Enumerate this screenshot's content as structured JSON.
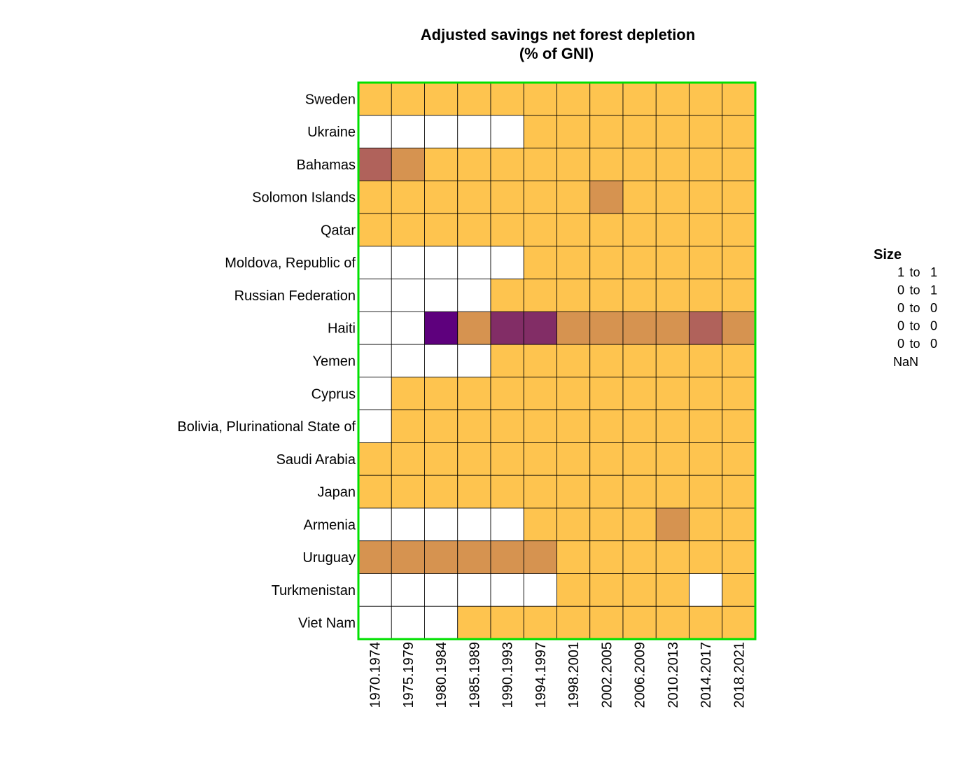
{
  "chart_data": {
    "type": "heatmap",
    "title": "Adjusted savings net forest depletion",
    "subtitle": "(% of GNI)",
    "rows": [
      "Sweden",
      "Ukraine",
      "Bahamas",
      "Solomon Islands",
      "Qatar",
      "Moldova, Republic of",
      "Russian Federation",
      "Haiti",
      "Yemen",
      "Cyprus",
      "Bolivia, Plurinational State of",
      "Saudi Arabia",
      "Japan",
      "Armenia",
      "Uruguay",
      "Turkmenistan",
      "Viet Nam"
    ],
    "columns": [
      "1970.1974",
      "1975.1979",
      "1980.1984",
      "1985.1989",
      "1990.1993",
      "1994.1997",
      "1998.2001",
      "2002.2005",
      "2006.2009",
      "2010.2013",
      "2014.2017",
      "2018.2021"
    ],
    "level_colors": [
      "#5e007d",
      "#822d66",
      "#b0625b",
      "#d69350",
      "#fec44f"
    ],
    "nan_color": "#ffffff",
    "grid_border_color": "#00e000",
    "cell_levels": [
      [
        4,
        4,
        4,
        4,
        4,
        4,
        4,
        4,
        4,
        4,
        4,
        4
      ],
      [
        null,
        null,
        null,
        null,
        null,
        4,
        4,
        4,
        4,
        4,
        4,
        4
      ],
      [
        2,
        3,
        4,
        4,
        4,
        4,
        4,
        4,
        4,
        4,
        4,
        4
      ],
      [
        4,
        4,
        4,
        4,
        4,
        4,
        4,
        3,
        4,
        4,
        4,
        4
      ],
      [
        4,
        4,
        4,
        4,
        4,
        4,
        4,
        4,
        4,
        4,
        4,
        4
      ],
      [
        null,
        null,
        null,
        null,
        null,
        4,
        4,
        4,
        4,
        4,
        4,
        4
      ],
      [
        null,
        null,
        null,
        null,
        4,
        4,
        4,
        4,
        4,
        4,
        4,
        4
      ],
      [
        null,
        null,
        0,
        3,
        1,
        1,
        3,
        3,
        3,
        3,
        2,
        3
      ],
      [
        null,
        null,
        null,
        null,
        4,
        4,
        4,
        4,
        4,
        4,
        4,
        4
      ],
      [
        null,
        4,
        4,
        4,
        4,
        4,
        4,
        4,
        4,
        4,
        4,
        4
      ],
      [
        null,
        4,
        4,
        4,
        4,
        4,
        4,
        4,
        4,
        4,
        4,
        4
      ],
      [
        4,
        4,
        4,
        4,
        4,
        4,
        4,
        4,
        4,
        4,
        4,
        4
      ],
      [
        4,
        4,
        4,
        4,
        4,
        4,
        4,
        4,
        4,
        4,
        4,
        4
      ],
      [
        null,
        null,
        null,
        null,
        null,
        4,
        4,
        4,
        4,
        3,
        4,
        4
      ],
      [
        3,
        3,
        3,
        3,
        3,
        3,
        4,
        4,
        4,
        4,
        4,
        4
      ],
      [
        null,
        null,
        null,
        null,
        null,
        null,
        4,
        4,
        4,
        4,
        null,
        4
      ],
      [
        null,
        null,
        null,
        4,
        4,
        4,
        4,
        4,
        4,
        4,
        4,
        4
      ]
    ],
    "legend": {
      "title": "Size",
      "entries": [
        {
          "from": "1",
          "sep": "to",
          "to": "1"
        },
        {
          "from": "0",
          "sep": "to",
          "to": "1"
        },
        {
          "from": "0",
          "sep": "to",
          "to": "0"
        },
        {
          "from": "0",
          "sep": "to",
          "to": "0"
        },
        {
          "from": "0",
          "sep": "to",
          "to": "0"
        }
      ],
      "nan_label": "NaN"
    }
  }
}
